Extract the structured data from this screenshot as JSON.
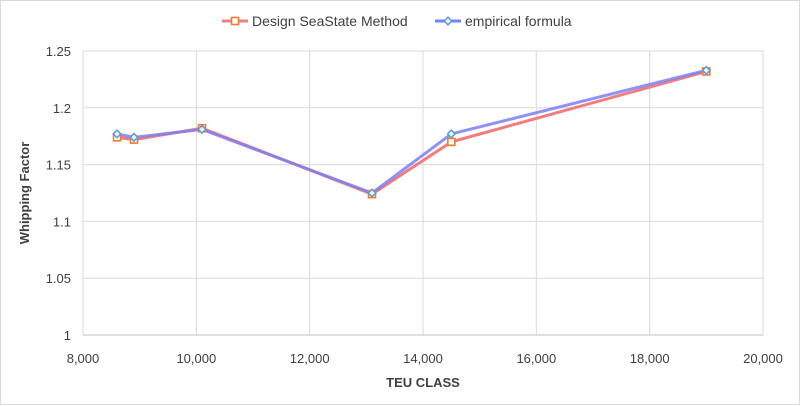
{
  "chart_data": {
    "type": "line",
    "title": "",
    "xlabel": "TEU CLASS",
    "ylabel": "Whipping Factor",
    "xlim": [
      8000,
      20000
    ],
    "ylim": [
      1,
      1.25
    ],
    "x_ticks": [
      8000,
      10000,
      12000,
      14000,
      16000,
      18000,
      20000
    ],
    "x_tick_labels": [
      "8,000",
      "10,000",
      "12,000",
      "14,000",
      "16,000",
      "18,000",
      "20,000"
    ],
    "y_ticks": [
      1,
      1.05,
      1.1,
      1.15,
      1.2,
      1.25
    ],
    "y_tick_labels": [
      "1",
      "1.05",
      "1.1",
      "1.15",
      "1.2",
      "1.25"
    ],
    "grid": true,
    "legend_position": "top-center",
    "series": [
      {
        "name": "Design SeaState Method",
        "color": "#f47c7c",
        "marker_color": "#ed7d31",
        "marker": "square",
        "x": [
          8600,
          8900,
          10100,
          13100,
          14500,
          19000
        ],
        "y": [
          1.174,
          1.172,
          1.182,
          1.124,
          1.17,
          1.232
        ]
      },
      {
        "name": "empirical formula",
        "color": "#7b7ff5",
        "marker_color": "#5b9bd5",
        "marker": "diamond",
        "x": [
          8600,
          8900,
          10100,
          13100,
          14500,
          19000
        ],
        "y": [
          1.177,
          1.174,
          1.181,
          1.125,
          1.177,
          1.233
        ]
      }
    ]
  }
}
